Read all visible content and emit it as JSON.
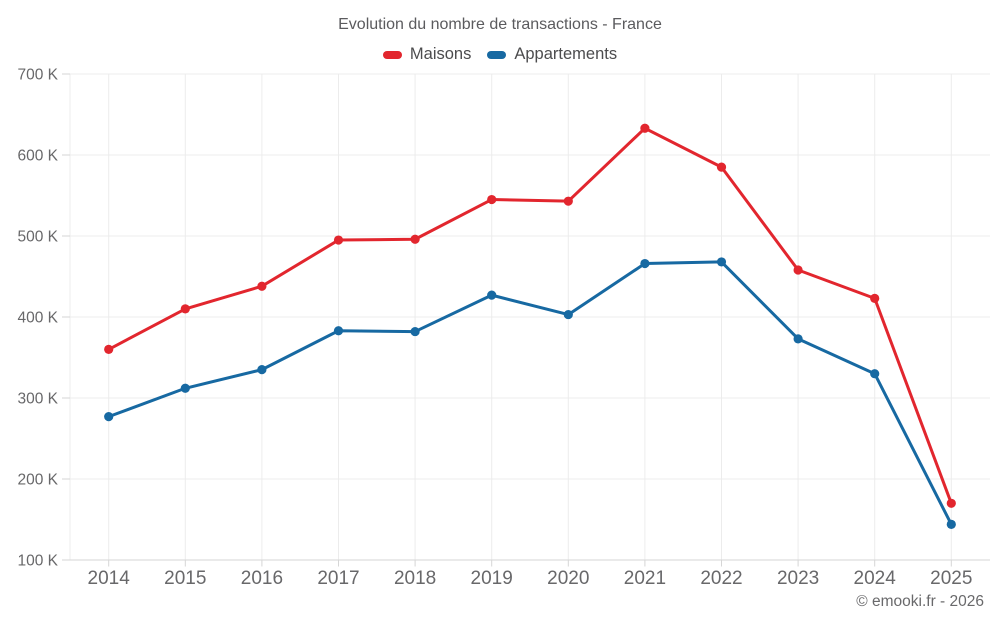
{
  "chart_data": {
    "type": "line",
    "title": "Evolution du nombre de transactions - France",
    "categories": [
      "2014",
      "2015",
      "2016",
      "2017",
      "2018",
      "2019",
      "2020",
      "2021",
      "2022",
      "2023",
      "2024",
      "2025"
    ],
    "series": [
      {
        "name": "Maisons",
        "color": "#e2262e",
        "values": [
          360000,
          410000,
          438000,
          495000,
          496000,
          545000,
          543000,
          633000,
          585000,
          458000,
          423000,
          170000
        ]
      },
      {
        "name": "Appartements",
        "color": "#1769a2",
        "values": [
          277000,
          312000,
          335000,
          383000,
          382000,
          427000,
          403000,
          466000,
          468000,
          373000,
          330000,
          144000
        ]
      }
    ],
    "xlabel": "",
    "ylabel": "",
    "y_axis": {
      "min": 100000,
      "max": 700000,
      "tick_step": 100000,
      "tick_labels": [
        "100 K",
        "200 K",
        "300 K",
        "400 K",
        "500 K",
        "600 K",
        "700 K"
      ]
    },
    "legend_position": "top",
    "grid": true
  },
  "footer": {
    "credit": "© emooki.fr - 2026"
  },
  "theme": {
    "grid_color": "#ececec",
    "axis_color": "#d6d6d6",
    "axis_label_color": "#68686a",
    "maisons_color": "#e2262e",
    "appartements_color": "#1769a2"
  }
}
